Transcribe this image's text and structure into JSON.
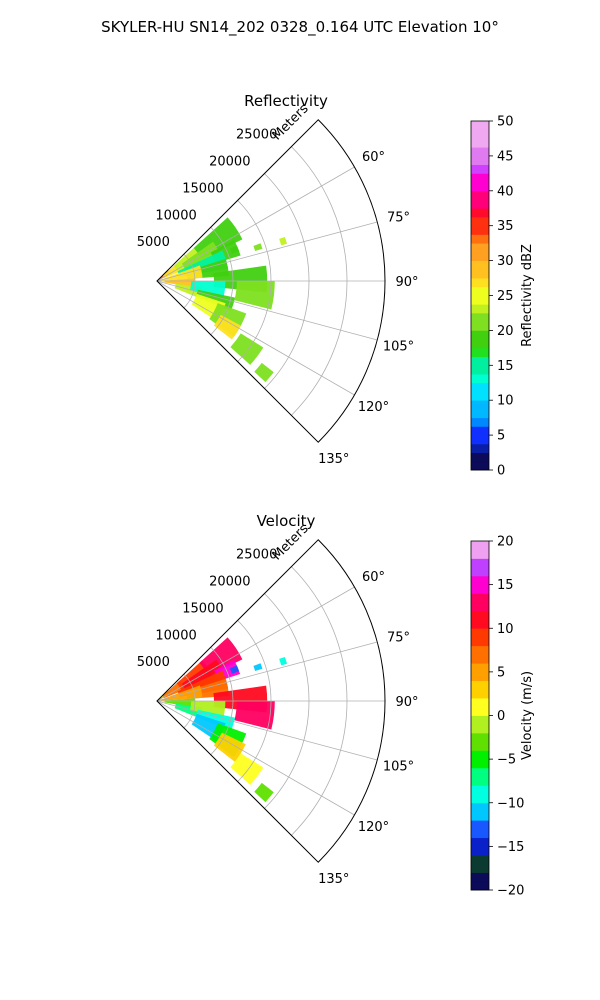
{
  "suptitle": "SKYLER-HU  SN14_202  0328_0.164 UTC Elevation 10°",
  "range_unit_label": "Meters",
  "chart_data": [
    {
      "type": "heatmap",
      "subtype": "polar-sector",
      "title": "Reflectivity",
      "theta_range_deg": [
        45,
        135
      ],
      "theta_ticks_deg": [
        60,
        75,
        90,
        105,
        120,
        135
      ],
      "theta_tick_labels": [
        "60°",
        "75°",
        "90°",
        "105°",
        "120°",
        "135°"
      ],
      "r_ticks": [
        5000,
        10000,
        15000,
        20000,
        25000
      ],
      "r_tick_labels": [
        "5000",
        "10000",
        "15000",
        "20000",
        "25000"
      ],
      "r_max": 30000,
      "grid": true,
      "colorbar": {
        "label": "Reflectivity dBZ",
        "range": [
          0,
          50
        ],
        "ticks": [
          0,
          5,
          10,
          15,
          20,
          25,
          30,
          35,
          40,
          45,
          50
        ],
        "tick_labels": [
          "0",
          "5",
          "10",
          "15",
          "20",
          "25",
          "30",
          "35",
          "40",
          "45",
          "50"
        ]
      },
      "regions": [
        {
          "az": [
            45,
            63
          ],
          "r": [
            0,
            2000
          ],
          "value": 33
        },
        {
          "az": [
            48,
            68
          ],
          "r": [
            1000,
            3500
          ],
          "value": 26
        },
        {
          "az": [
            48,
            66
          ],
          "r": [
            3000,
            6500
          ],
          "value": 22
        },
        {
          "az": [
            48,
            64
          ],
          "r": [
            6500,
            12500
          ],
          "value": 19
        },
        {
          "az": [
            55,
            72
          ],
          "r": [
            4000,
            9000
          ],
          "value": 21
        },
        {
          "az": [
            62,
            73
          ],
          "r": [
            8000,
            11500
          ],
          "value": 18
        },
        {
          "az": [
            65,
            80
          ],
          "r": [
            3000,
            9500
          ],
          "value": 14
        },
        {
          "az": [
            72,
            86
          ],
          "r": [
            4000,
            9500
          ],
          "value": 19
        },
        {
          "az": [
            82,
            96
          ],
          "r": [
            7500,
            14500
          ],
          "value": 18
        },
        {
          "az": [
            90,
            104
          ],
          "r": [
            10500,
            15500
          ],
          "value": 20
        },
        {
          "az": [
            70,
            86
          ],
          "r": [
            500,
            6000
          ],
          "value": 27
        },
        {
          "az": [
            86,
            100
          ],
          "r": [
            1000,
            5000
          ],
          "value": 28
        },
        {
          "az": [
            98,
            112
          ],
          "r": [
            2500,
            6000
          ],
          "value": 23
        },
        {
          "az": [
            90,
            105
          ],
          "r": [
            4500,
            9000
          ],
          "value": 13
        },
        {
          "az": [
            102,
            112
          ],
          "r": [
            5500,
            10500
          ],
          "value": 19
        },
        {
          "az": [
            108,
            124
          ],
          "r": [
            5500,
            9500
          ],
          "value": 24
        },
        {
          "az": [
            110,
            126
          ],
          "r": [
            8500,
            12500
          ],
          "value": 21
        },
        {
          "az": [
            118,
            128
          ],
          "r": [
            9500,
            12500
          ],
          "value": 26
        },
        {
          "az": [
            122,
            132
          ],
          "r": [
            13000,
            16500
          ],
          "value": 20
        },
        {
          "az": [
            128,
            133
          ],
          "r": [
            17500,
            19500
          ],
          "value": 21
        },
        {
          "az": [
            66,
            70
          ],
          "r": [
            10500,
            11500
          ],
          "value": 19
        },
        {
          "az": [
            70,
            73
          ],
          "r": [
            13500,
            14500
          ],
          "value": 20
        },
        {
          "az": [
            71,
            74
          ],
          "r": [
            17000,
            17800
          ],
          "value": 22
        }
      ]
    },
    {
      "type": "heatmap",
      "subtype": "polar-sector",
      "title": "Velocity",
      "theta_range_deg": [
        45,
        135
      ],
      "theta_ticks_deg": [
        60,
        75,
        90,
        105,
        120,
        135
      ],
      "theta_tick_labels": [
        "60°",
        "75°",
        "90°",
        "105°",
        "120°",
        "135°"
      ],
      "r_ticks": [
        5000,
        10000,
        15000,
        20000,
        25000
      ],
      "r_tick_labels": [
        "5000",
        "10000",
        "15000",
        "20000",
        "25000"
      ],
      "r_max": 30000,
      "grid": true,
      "colorbar": {
        "label": "Velocity (m/s)",
        "range": [
          -20,
          20
        ],
        "ticks": [
          -20,
          -15,
          -10,
          -5,
          0,
          5,
          10,
          15,
          20
        ],
        "tick_labels": [
          "−20",
          "−15",
          "−10",
          "−5",
          "0",
          "5",
          "10",
          "15",
          "20"
        ]
      },
      "regions": [
        {
          "az": [
            45,
            63
          ],
          "r": [
            0,
            2000
          ],
          "value": 3
        },
        {
          "az": [
            48,
            68
          ],
          "r": [
            1000,
            4000
          ],
          "value": 7
        },
        {
          "az": [
            48,
            66
          ],
          "r": [
            3500,
            8000
          ],
          "value": 9
        },
        {
          "az": [
            48,
            64
          ],
          "r": [
            7500,
            12500
          ],
          "value": 12
        },
        {
          "az": [
            55,
            72
          ],
          "r": [
            4000,
            9500
          ],
          "value": 10
        },
        {
          "az": [
            62,
            72
          ],
          "r": [
            8500,
            11500
          ],
          "value": 14
        },
        {
          "az": [
            65,
            80
          ],
          "r": [
            3000,
            9500
          ],
          "value": 8
        },
        {
          "az": [
            72,
            86
          ],
          "r": [
            4000,
            9500
          ],
          "value": 7
        },
        {
          "az": [
            82,
            96
          ],
          "r": [
            7500,
            14500
          ],
          "value": 10
        },
        {
          "az": [
            90,
            104
          ],
          "r": [
            10500,
            15500
          ],
          "value": 12
        },
        {
          "az": [
            70,
            86
          ],
          "r": [
            500,
            6000
          ],
          "value": 4
        },
        {
          "az": [
            86,
            100
          ],
          "r": [
            1000,
            5000
          ],
          "value": -3
        },
        {
          "az": [
            98,
            112
          ],
          "r": [
            2500,
            6000
          ],
          "value": -7
        },
        {
          "az": [
            90,
            105
          ],
          "r": [
            4500,
            9000
          ],
          "value": -2
        },
        {
          "az": [
            102,
            112
          ],
          "r": [
            5500,
            10500
          ],
          "value": -10
        },
        {
          "az": [
            108,
            124
          ],
          "r": [
            5500,
            9500
          ],
          "value": -12
        },
        {
          "az": [
            110,
            126
          ],
          "r": [
            8500,
            12500
          ],
          "value": -5
        },
        {
          "az": [
            116,
            128
          ],
          "r": [
            9500,
            13000
          ],
          "value": 2
        },
        {
          "az": [
            122,
            132
          ],
          "r": [
            13000,
            16500
          ],
          "value": 1
        },
        {
          "az": [
            128,
            133
          ],
          "r": [
            17500,
            19500
          ],
          "value": -4
        },
        {
          "az": [
            66,
            70
          ],
          "r": [
            10500,
            11500
          ],
          "value": -14
        },
        {
          "az": [
            70,
            73
          ],
          "r": [
            13500,
            14500
          ],
          "value": -12
        },
        {
          "az": [
            71,
            74
          ],
          "r": [
            17000,
            17800
          ],
          "value": -10
        }
      ]
    }
  ]
}
